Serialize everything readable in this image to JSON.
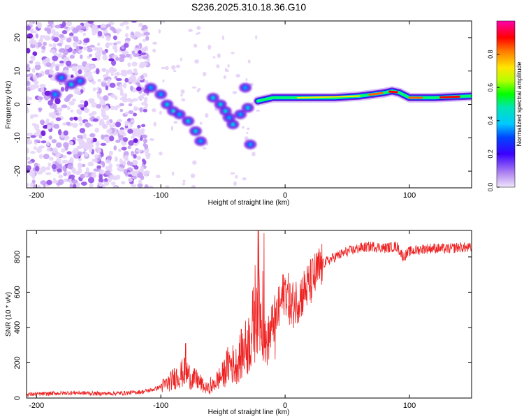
{
  "figure_title": "S236.2025.310.18.36.G10",
  "colors": {
    "heat_low": "#e8d6f8",
    "heat_mid": "#7a22e0",
    "snr_line": "#ee2222",
    "axis": "#000000",
    "background": "#ffffff"
  },
  "colormap": [
    "#ffffff",
    "#f0e6fb",
    "#dcc4f7",
    "#b48af0",
    "#7a22e0",
    "#0000ff",
    "#00b4ff",
    "#00e6c8",
    "#00ff00",
    "#c8ff00",
    "#ffd200",
    "#ff6400",
    "#ff0000",
    "#ff0096",
    "#ff00c8"
  ],
  "chart_data": [
    {
      "type": "heatmap",
      "title": "S236.2025.310.18.36.G10",
      "xlabel": "Height of straight line (km)",
      "ylabel": "Frequency (Hz)",
      "xlim": [
        -208,
        150
      ],
      "ylim": [
        -25,
        25
      ],
      "xticks": [
        -200,
        -100,
        0,
        100
      ],
      "yticks": [
        -20,
        -10,
        0,
        10,
        20
      ],
      "colorbar": {
        "label": "Normalized spectral amplitude",
        "range": [
          0,
          1
        ],
        "ticks": [
          0.0,
          0.2,
          0.4,
          0.6,
          0.8
        ]
      },
      "ridge": [
        {
          "x": -22,
          "f": 1.0
        },
        {
          "x": -10,
          "f": 2.0
        },
        {
          "x": 0,
          "f": 2.0
        },
        {
          "x": 20,
          "f": 2.0
        },
        {
          "x": 40,
          "f": 2.0
        },
        {
          "x": 60,
          "f": 2.5
        },
        {
          "x": 70,
          "f": 3.0
        },
        {
          "x": 80,
          "f": 3.5
        },
        {
          "x": 86,
          "f": 4.0
        },
        {
          "x": 92,
          "f": 3.5
        },
        {
          "x": 100,
          "f": 2.0
        },
        {
          "x": 120,
          "f": 2.0
        },
        {
          "x": 150,
          "f": 2.5
        }
      ],
      "clusters": [
        {
          "x": -180,
          "f": 8,
          "a": 0.3
        },
        {
          "x": -172,
          "f": 6,
          "a": 0.35
        },
        {
          "x": -165,
          "f": 7,
          "a": 0.3
        },
        {
          "x": -185,
          "f": 3,
          "a": 0.25
        },
        {
          "x": -108,
          "f": 5,
          "a": 0.3
        },
        {
          "x": -100,
          "f": 3,
          "a": 0.3
        },
        {
          "x": -95,
          "f": 0,
          "a": 0.35
        },
        {
          "x": -90,
          "f": -2,
          "a": 0.35
        },
        {
          "x": -85,
          "f": -3,
          "a": 0.3
        },
        {
          "x": -78,
          "f": -5,
          "a": 0.4
        },
        {
          "x": -72,
          "f": -8,
          "a": 0.35
        },
        {
          "x": -68,
          "f": -11,
          "a": 0.3
        },
        {
          "x": -58,
          "f": 2,
          "a": 0.35
        },
        {
          "x": -52,
          "f": 0,
          "a": 0.4
        },
        {
          "x": -48,
          "f": -2,
          "a": 0.35
        },
        {
          "x": -45,
          "f": -4,
          "a": 0.3
        },
        {
          "x": -42,
          "f": -6,
          "a": 0.35
        },
        {
          "x": -36,
          "f": -3,
          "a": 0.3
        },
        {
          "x": -32,
          "f": 5,
          "a": 0.3
        },
        {
          "x": -30,
          "f": -1,
          "a": 0.35
        },
        {
          "x": -28,
          "f": -12,
          "a": 0.25
        }
      ]
    },
    {
      "type": "line",
      "title": "",
      "xlabel": "Height of straight line (km)",
      "ylabel": "SNR (10 * v/v)",
      "xlim": [
        -208,
        150
      ],
      "ylim": [
        0,
        950
      ],
      "xticks": [
        -200,
        -100,
        0,
        100
      ],
      "yticks": [
        0,
        200,
        400,
        600,
        800
      ],
      "series": [
        {
          "name": "SNR",
          "x": [
            -208,
            -190,
            -170,
            -150,
            -130,
            -115,
            -105,
            -95,
            -88,
            -80,
            -75,
            -70,
            -65,
            -60,
            -55,
            -50,
            -45,
            -40,
            -35,
            -30,
            -25,
            -22,
            -20,
            -18,
            -15,
            -10,
            -5,
            0,
            5,
            10,
            15,
            20,
            25,
            30,
            40,
            50,
            60,
            70,
            80,
            90,
            95,
            100,
            110,
            120,
            130,
            140,
            150
          ],
          "y": [
            20,
            25,
            30,
            25,
            28,
            35,
            50,
            80,
            120,
            150,
            110,
            100,
            60,
            50,
            100,
            130,
            200,
            180,
            250,
            300,
            420,
            650,
            500,
            350,
            300,
            420,
            500,
            620,
            520,
            560,
            600,
            650,
            700,
            760,
            800,
            830,
            850,
            860,
            850,
            860,
            800,
            830,
            845,
            850,
            845,
            855,
            850
          ]
        }
      ],
      "spikes": [
        {
          "x": -80,
          "y": 310
        },
        {
          "x": -60,
          "y": 120
        },
        {
          "x": -42,
          "y": 300
        },
        {
          "x": -32,
          "y": 340
        },
        {
          "x": -25,
          "y": 430
        },
        {
          "x": -18,
          "y": 720
        },
        {
          "x": -17,
          "y": 935
        },
        {
          "x": -8,
          "y": 220
        },
        {
          "x": 5,
          "y": 420
        },
        {
          "x": 15,
          "y": 560
        }
      ]
    }
  ]
}
